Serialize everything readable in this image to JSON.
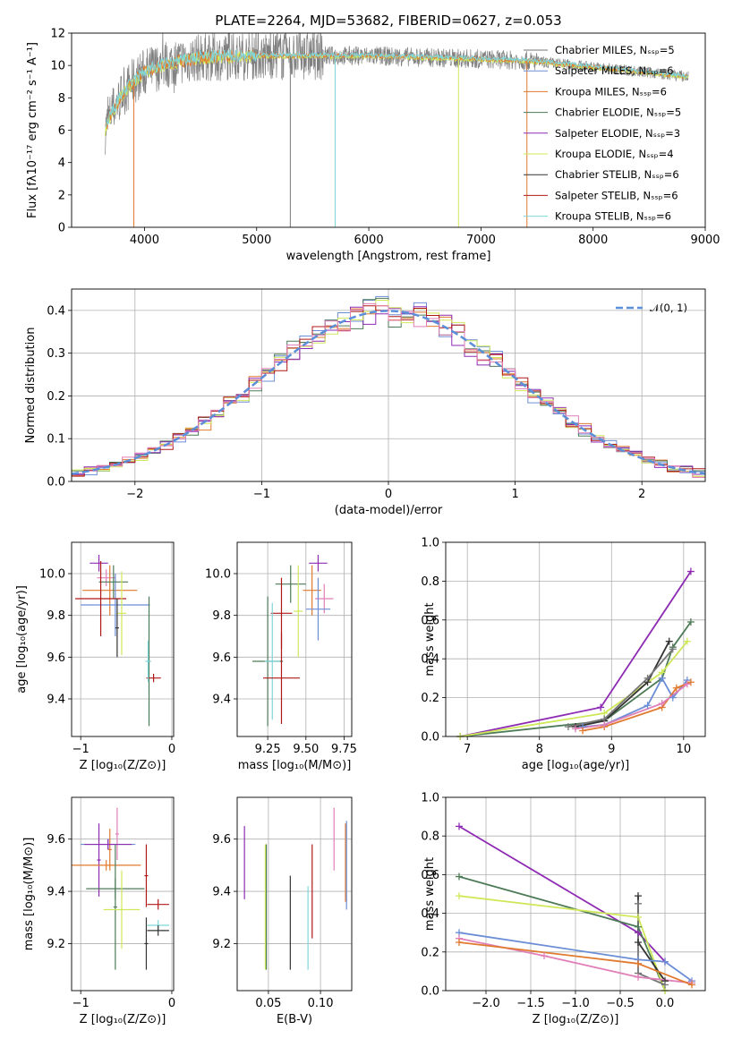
{
  "colors": {
    "chabrier_miles": "#777777",
    "salpeter_miles": "#6c8ed6",
    "kroupa_miles": "#e07a2e",
    "chabrier_elodie": "#4d7a57",
    "salpeter_elodie": "#8e2bb3",
    "kroupa_elodie": "#cfe85a",
    "chabrier_stelib": "#333333",
    "salpeter_stelib": "#b01818",
    "kroupa_stelib": "#7fd6da",
    "pink": "#e07fb8",
    "normal": "#5b8fd9"
  },
  "chart_data": [
    {
      "id": "spectrum",
      "type": "line",
      "title": "PLATE=2264, MJD=53682, FIBERID=0627, z=0.053",
      "xlabel": "wavelength [Angstrom, rest frame]",
      "ylabel": "Flux [fλ10⁻¹⁷ erg cm⁻² s⁻¹ A⁻¹]",
      "xlim": [
        3350,
        9000
      ],
      "ylim": [
        0,
        12
      ],
      "xticks": [
        "4000",
        "5000",
        "6000",
        "7000",
        "8000",
        "9000"
      ],
      "yticks": [
        "0",
        "2",
        "4",
        "6",
        "8",
        "10",
        "12"
      ],
      "grid": false,
      "legend_position": "right",
      "legend": [
        "Chabrier MILES, Nₛₛₚ=5",
        "Salpeter MILES, Nₛₛₚ=6",
        "Kroupa MILES, Nₛₛₚ=6",
        "Chabrier ELODIE, Nₛₛₚ=5",
        "Salpeter ELODIE, Nₛₛₚ=3",
        "Kroupa ELODIE, Nₛₛₚ=4",
        "Chabrier STELIB, Nₛₛₚ=6",
        "Salpeter STELIB, Nₛₛₚ=6",
        "Kroupa STELIB, Nₛₛₚ=6"
      ],
      "continuum": {
        "x": [
          3650,
          3700,
          3800,
          3900,
          4000,
          4200,
          4500,
          5000,
          5500,
          6000,
          6500,
          7000,
          7400,
          7700,
          8000,
          8300,
          8600,
          8850
        ],
        "y": [
          6.0,
          7.0,
          8.2,
          9.0,
          9.6,
          10.1,
          10.5,
          10.6,
          10.6,
          10.6,
          10.5,
          10.4,
          10.3,
          10.1,
          9.9,
          9.7,
          9.5,
          9.3
        ]
      },
      "spikes": [
        {
          "x": 3905,
          "y": 0,
          "series": "kroupa_miles"
        },
        {
          "x": 5300,
          "y": 0,
          "series": "chabrier_miles"
        },
        {
          "x": 5700,
          "y": 0,
          "series": "kroupa_stelib"
        },
        {
          "x": 6800,
          "y": 0,
          "series": "kroupa_elodie"
        },
        {
          "x": 7410,
          "y": 0,
          "series": "kroupa_miles"
        }
      ]
    },
    {
      "id": "residuals",
      "type": "line",
      "xlabel": "(data-model)/error",
      "ylabel": "Normed distribution",
      "xlim": [
        -2.5,
        2.5
      ],
      "ylim": [
        0,
        0.45
      ],
      "xticks": [
        "−2",
        "−1",
        "0",
        "1",
        "2"
      ],
      "yticks": [
        "0.0",
        "0.1",
        "0.2",
        "0.3",
        "0.4"
      ],
      "grid": true,
      "legend": [
        "𝒩(0, 1)"
      ],
      "legend_position": "top-right",
      "bin_width": 0.1,
      "histogram_series": [
        "salpeter_miles",
        "kroupa_miles",
        "chabrier_elodie",
        "salpeter_elodie",
        "kroupa_elodie",
        "salpeter_stelib",
        "pink"
      ]
    },
    {
      "id": "age_z",
      "type": "scatter",
      "xlabel": "Z [log₁₀(Z/Z⊙)]",
      "ylabel": "age  [log₁₀(age/yr)]",
      "xlim": [
        -1.1,
        0.02
      ],
      "ylim": [
        9.22,
        10.15
      ],
      "xticks": [
        "−1",
        "0"
      ],
      "yticks": [
        "9.4",
        "9.6",
        "9.8",
        "10.0"
      ],
      "grid": true,
      "points": [
        {
          "x": -0.8,
          "y": 10.05,
          "xerr": 0.1,
          "yerr": 0.04,
          "series": "salpeter_elodie"
        },
        {
          "x": -0.72,
          "y": 9.98,
          "xerr": 0.1,
          "yerr": 0.04,
          "series": "pink"
        },
        {
          "x": -0.68,
          "y": 9.92,
          "xerr": 0.3,
          "yerr": 0.12,
          "series": "kroupa_miles"
        },
        {
          "x": -0.62,
          "y": 9.85,
          "xerr": 0.38,
          "yerr": 0.15,
          "series": "salpeter_miles"
        },
        {
          "x": -0.64,
          "y": 9.96,
          "xerr": 0.16,
          "yerr": 0.08,
          "series": "chabrier_elodie"
        },
        {
          "x": -0.78,
          "y": 9.88,
          "xerr": 0.28,
          "yerr": 0.18,
          "series": "salpeter_stelib"
        },
        {
          "x": -0.55,
          "y": 9.81,
          "xerr": 0.05,
          "yerr": 0.2,
          "series": "kroupa_elodie"
        },
        {
          "x": -0.6,
          "y": 9.74,
          "xerr": 0.02,
          "yerr": 0.14,
          "series": "chabrier_stelib"
        },
        {
          "x": -0.25,
          "y": 9.58,
          "xerr": 0.02,
          "yerr": 0.31,
          "series": "chabrier_elodie"
        },
        {
          "x": -0.2,
          "y": 9.5,
          "xerr": 0.08,
          "yerr": 0.02,
          "series": "salpeter_stelib"
        },
        {
          "x": -0.26,
          "y": 9.58,
          "xerr": 0.03,
          "yerr": 0.1,
          "series": "kroupa_stelib"
        }
      ]
    },
    {
      "id": "age_mass",
      "type": "scatter",
      "xlabel": "mass [log₁₀(M/M⊙)]",
      "xlim": [
        9.05,
        9.8
      ],
      "ylim": [
        9.22,
        10.15
      ],
      "xticks": [
        "9.25",
        "9.50",
        "9.75"
      ],
      "yticks": [
        "9.4",
        "9.6",
        "9.8",
        "10.0"
      ],
      "grid": true,
      "points": [
        {
          "x": 9.58,
          "y": 10.05,
          "xerr": 0.06,
          "yerr": 0.04,
          "series": "salpeter_elodie"
        },
        {
          "x": 9.62,
          "y": 9.88,
          "xerr": 0.06,
          "yerr": 0.07,
          "series": "pink"
        },
        {
          "x": 9.54,
          "y": 9.92,
          "xerr": 0.06,
          "yerr": 0.12,
          "series": "kroupa_miles"
        },
        {
          "x": 9.58,
          "y": 9.83,
          "xerr": 0.08,
          "yerr": 0.15,
          "series": "salpeter_miles"
        },
        {
          "x": 9.4,
          "y": 9.95,
          "xerr": 0.1,
          "yerr": 0.09,
          "series": "chabrier_elodie"
        },
        {
          "x": 9.45,
          "y": 9.82,
          "xerr": 0.03,
          "yerr": 0.22,
          "series": "kroupa_elodie"
        },
        {
          "x": 9.34,
          "y": 9.81,
          "xerr": 0.07,
          "yerr": 0.17,
          "series": "salpeter_stelib"
        },
        {
          "x": 9.25,
          "y": 9.58,
          "xerr": 0.1,
          "yerr": 0.31,
          "series": "chabrier_elodie"
        },
        {
          "x": 9.28,
          "y": 9.58,
          "xerr": 0.05,
          "yerr": 0.28,
          "series": "kroupa_stelib"
        },
        {
          "x": 9.34,
          "y": 9.5,
          "xerr": 0.12,
          "yerr": 0.22,
          "series": "salpeter_stelib"
        }
      ]
    },
    {
      "id": "mw_age",
      "type": "line",
      "xlabel": "age  [log₁₀(age/yr)]",
      "ylabel": "mass weight",
      "xlim": [
        6.7,
        10.3
      ],
      "ylim": [
        0,
        1
      ],
      "xticks": [
        "7",
        "8",
        "9",
        "10"
      ],
      "yticks": [
        "0.0",
        "0.2",
        "0.4",
        "0.6",
        "0.8",
        "1.0"
      ],
      "grid": true,
      "series": [
        {
          "key": "salpeter_elodie",
          "x": [
            6.9,
            8.85,
            10.1
          ],
          "y": [
            0.0,
            0.15,
            0.85
          ]
        },
        {
          "key": "chabrier_elodie",
          "x": [
            6.9,
            8.9,
            9.7,
            9.85,
            10.1
          ],
          "y": [
            0.0,
            0.08,
            0.3,
            0.46,
            0.59
          ]
        },
        {
          "key": "kroupa_elodie",
          "x": [
            6.9,
            8.9,
            9.7,
            10.05
          ],
          "y": [
            0.0,
            0.12,
            0.33,
            0.49
          ]
        },
        {
          "key": "chabrier_stelib",
          "x": [
            8.5,
            8.9,
            9.5,
            9.8
          ],
          "y": [
            0.05,
            0.08,
            0.28,
            0.49
          ]
        },
        {
          "key": "chabrier_miles",
          "x": [
            8.4,
            8.9,
            9.5,
            9.85
          ],
          "y": [
            0.05,
            0.09,
            0.3,
            0.45
          ]
        },
        {
          "key": "salpeter_miles",
          "x": [
            8.6,
            8.9,
            9.5,
            9.7,
            9.85,
            10.05
          ],
          "y": [
            0.05,
            0.06,
            0.16,
            0.3,
            0.2,
            0.29
          ]
        },
        {
          "key": "kroupa_miles",
          "x": [
            8.6,
            8.9,
            9.7,
            9.9,
            10.1
          ],
          "y": [
            0.03,
            0.05,
            0.15,
            0.25,
            0.28
          ]
        },
        {
          "key": "pink",
          "x": [
            8.5,
            8.9,
            9.7,
            10.05
          ],
          "y": [
            0.04,
            0.06,
            0.17,
            0.27
          ]
        }
      ]
    },
    {
      "id": "mass_z",
      "type": "scatter",
      "xlabel": "Z [log₁₀(Z/Z⊙)]",
      "ylabel": "mass [log₁₀(M/M⊙)]",
      "xlim": [
        -1.1,
        0.02
      ],
      "ylim": [
        9.02,
        9.76
      ],
      "xticks": [
        "−1",
        "0"
      ],
      "yticks": [
        "9.2",
        "9.4",
        "9.6"
      ],
      "grid": true,
      "points": [
        {
          "x": -0.8,
          "y": 9.52,
          "xerr": 0.02,
          "yerr": 0.14,
          "series": "salpeter_elodie"
        },
        {
          "x": -0.6,
          "y": 9.62,
          "xerr": 0.02,
          "yerr": 0.1,
          "series": "pink"
        },
        {
          "x": -0.68,
          "y": 9.56,
          "xerr": 0.02,
          "yerr": 0.08,
          "series": "kroupa_miles"
        },
        {
          "x": -0.7,
          "y": 9.58,
          "xerr": 0.3,
          "yerr": 0.02,
          "series": "salpeter_miles"
        },
        {
          "x": -0.7,
          "y": 9.58,
          "xerr": 0.26,
          "yerr": 0.02,
          "series": "salpeter_elodie"
        },
        {
          "x": -0.72,
          "y": 9.5,
          "xerr": 0.38,
          "yerr": 0.02,
          "series": "kroupa_miles"
        },
        {
          "x": -0.62,
          "y": 9.41,
          "xerr": 0.32,
          "yerr": 0.04,
          "series": "chabrier_elodie"
        },
        {
          "x": -0.62,
          "y": 9.34,
          "xerr": 0.02,
          "yerr": 0.24,
          "series": "chabrier_elodie"
        },
        {
          "x": -0.55,
          "y": 9.33,
          "xerr": 0.2,
          "yerr": 0.15,
          "series": "kroupa_elodie"
        },
        {
          "x": -0.28,
          "y": 9.46,
          "xerr": 0.02,
          "yerr": 0.12,
          "series": "salpeter_stelib"
        },
        {
          "x": -0.15,
          "y": 9.35,
          "xerr": 0.12,
          "yerr": 0.02,
          "series": "salpeter_stelib"
        },
        {
          "x": -0.15,
          "y": 9.27,
          "xerr": 0.12,
          "yerr": 0.02,
          "series": "kroupa_stelib"
        },
        {
          "x": -0.15,
          "y": 9.25,
          "xerr": 0.12,
          "yerr": 0.02,
          "series": "chabrier_stelib"
        },
        {
          "x": -0.28,
          "y": 9.2,
          "xerr": 0.02,
          "yerr": 0.1,
          "series": "chabrier_stelib"
        }
      ]
    },
    {
      "id": "mass_ebv",
      "type": "scatter",
      "xlabel": "E(B-V)",
      "xlim": [
        0.02,
        0.13
      ],
      "ylim": [
        9.02,
        9.76
      ],
      "xticks": [
        "0.05",
        "0.10"
      ],
      "yticks": [
        "9.2",
        "9.4",
        "9.6"
      ],
      "grid": true,
      "points": [
        {
          "x": 0.027,
          "y": 9.51,
          "yerr": 0.14,
          "series": "salpeter_elodie"
        },
        {
          "x": 0.047,
          "y": 9.34,
          "yerr": 0.24,
          "series": "kroupa_elodie"
        },
        {
          "x": 0.048,
          "y": 9.34,
          "yerr": 0.24,
          "series": "chabrier_elodie"
        },
        {
          "x": 0.071,
          "y": 9.28,
          "yerr": 0.18,
          "series": "chabrier_stelib"
        },
        {
          "x": 0.088,
          "y": 9.26,
          "yerr": 0.16,
          "series": "kroupa_stelib"
        },
        {
          "x": 0.092,
          "y": 9.4,
          "yerr": 0.18,
          "series": "salpeter_stelib"
        },
        {
          "x": 0.113,
          "y": 9.6,
          "yerr": 0.12,
          "series": "pink"
        },
        {
          "x": 0.124,
          "y": 9.51,
          "yerr": 0.15,
          "series": "kroupa_miles"
        },
        {
          "x": 0.125,
          "y": 9.5,
          "yerr": 0.17,
          "series": "salpeter_miles"
        }
      ]
    },
    {
      "id": "mw_z",
      "type": "line",
      "xlabel": "Z [log₁₀(Z/Z⊙)]",
      "ylabel": "mass weight",
      "xlim": [
        -2.45,
        0.45
      ],
      "ylim": [
        0,
        1
      ],
      "xticks": [
        "−2.0",
        "−1.5",
        "−1.0",
        "−0.5",
        "0.0"
      ],
      "yticks": [
        "0.0",
        "0.2",
        "0.4",
        "0.6",
        "0.8",
        "1.0"
      ],
      "grid": true,
      "series": [
        {
          "key": "salpeter_elodie",
          "x": [
            -2.3,
            -0.3,
            0.0
          ],
          "y": [
            0.85,
            0.3,
            0.15
          ]
        },
        {
          "key": "chabrier_elodie",
          "x": [
            -2.3,
            -0.3,
            0.0
          ],
          "y": [
            0.59,
            0.33,
            0.0
          ]
        },
        {
          "key": "kroupa_elodie",
          "x": [
            -2.3,
            -0.3,
            0.0
          ],
          "y": [
            0.49,
            0.38,
            0.0
          ]
        },
        {
          "key": "chabrier_stelib",
          "x": [
            -0.3,
            -0.3,
            0.0
          ],
          "y": [
            0.49,
            0.25,
            0.05
          ]
        },
        {
          "key": "chabrier_miles",
          "x": [
            -0.3,
            -0.3,
            0.0
          ],
          "y": [
            0.45,
            0.09,
            0.03
          ]
        },
        {
          "key": "salpeter_miles",
          "x": [
            -2.3,
            -0.3,
            0.0,
            0.3
          ],
          "y": [
            0.3,
            0.16,
            0.15,
            0.05
          ]
        },
        {
          "key": "pink",
          "x": [
            -2.3,
            -1.35,
            -0.3,
            0.3
          ],
          "y": [
            0.27,
            0.18,
            0.07,
            0.04
          ]
        },
        {
          "key": "kroupa_miles",
          "x": [
            -2.3,
            -0.3,
            0.3
          ],
          "y": [
            0.25,
            0.14,
            0.03
          ]
        }
      ]
    }
  ]
}
